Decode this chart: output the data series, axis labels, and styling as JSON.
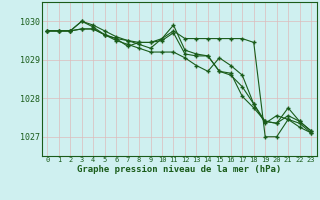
{
  "title": "Graphe pression niveau de la mer (hPa)",
  "background_color": "#cff0f0",
  "grid_color": "#ddbbbb",
  "line_color": "#1a5c1a",
  "text_color": "#1a5c1a",
  "xlim": [
    -0.5,
    23.5
  ],
  "ylim": [
    1026.5,
    1030.5
  ],
  "yticks": [
    1027,
    1028,
    1029,
    1030
  ],
  "xticks": [
    0,
    1,
    2,
    3,
    4,
    5,
    6,
    7,
    8,
    9,
    10,
    11,
    12,
    13,
    14,
    15,
    16,
    17,
    18,
    19,
    20,
    21,
    22,
    23
  ],
  "series": [
    [
      1029.75,
      1029.75,
      1029.75,
      1030.0,
      1029.9,
      1029.75,
      1029.6,
      1029.5,
      1029.4,
      1029.3,
      1029.55,
      1029.75,
      1029.55,
      1029.55,
      1029.55,
      1029.55,
      1029.55,
      1029.55,
      1029.45,
      1027.0,
      1027.0,
      1027.45,
      1027.25,
      1027.1
    ],
    [
      1029.75,
      1029.75,
      1029.75,
      1029.8,
      1029.8,
      1029.65,
      1029.5,
      1029.4,
      1029.3,
      1029.2,
      1029.2,
      1029.2,
      1029.05,
      1028.85,
      1028.7,
      1029.05,
      1028.85,
      1028.6,
      1027.85,
      1027.35,
      1027.55,
      1027.45,
      1027.35,
      1027.1
    ],
    [
      1029.75,
      1029.75,
      1029.75,
      1029.8,
      1029.8,
      1029.65,
      1029.55,
      1029.35,
      1029.45,
      1029.45,
      1029.55,
      1029.9,
      1029.25,
      1029.15,
      1029.1,
      1028.7,
      1028.6,
      1028.3,
      1027.85,
      1027.4,
      1027.35,
      1027.75,
      1027.4,
      1027.15
    ],
    [
      1029.75,
      1029.75,
      1029.75,
      1030.0,
      1029.85,
      1029.65,
      1029.55,
      1029.5,
      1029.45,
      1029.45,
      1029.5,
      1029.7,
      1029.15,
      1029.1,
      1029.1,
      1028.7,
      1028.65,
      1028.05,
      1027.75,
      1027.4,
      1027.35,
      1027.55,
      1027.4,
      1027.15
    ]
  ]
}
